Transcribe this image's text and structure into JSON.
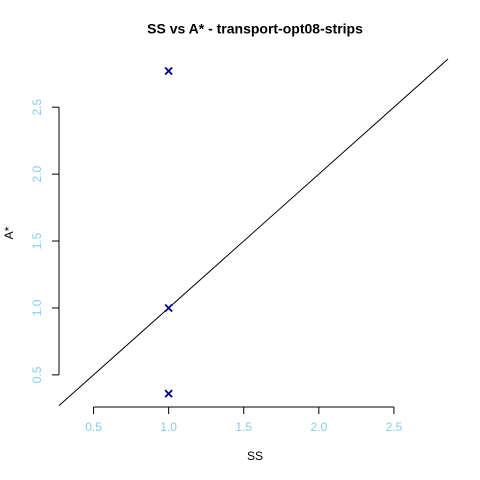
{
  "chart_data": {
    "type": "scatter",
    "title": "SS vs A* - transport-opt08-strips",
    "x_label": "SS",
    "y_label": "A*",
    "x": [
      1.0,
      1.0,
      1.0
    ],
    "values": [
      2.77,
      1.0,
      0.36
    ],
    "color": "#00008b",
    "tick_color": "#87ceeb",
    "xlim": [
      0.27,
      2.88
    ],
    "ylim": [
      0.26,
      2.86
    ],
    "xticks": [
      0.5,
      {
        "value": 1.0,
        "label": "1.0"
      },
      1.5,
      {
        "value": 2.0,
        "label": "2.0"
      },
      2.5
    ],
    "yticks": [
      0.5,
      {
        "value": 1.0,
        "label": "1.0"
      },
      1.5,
      {
        "value": 2.0,
        "label": "2.0"
      },
      2.5
    ],
    "diagonal": true
  }
}
